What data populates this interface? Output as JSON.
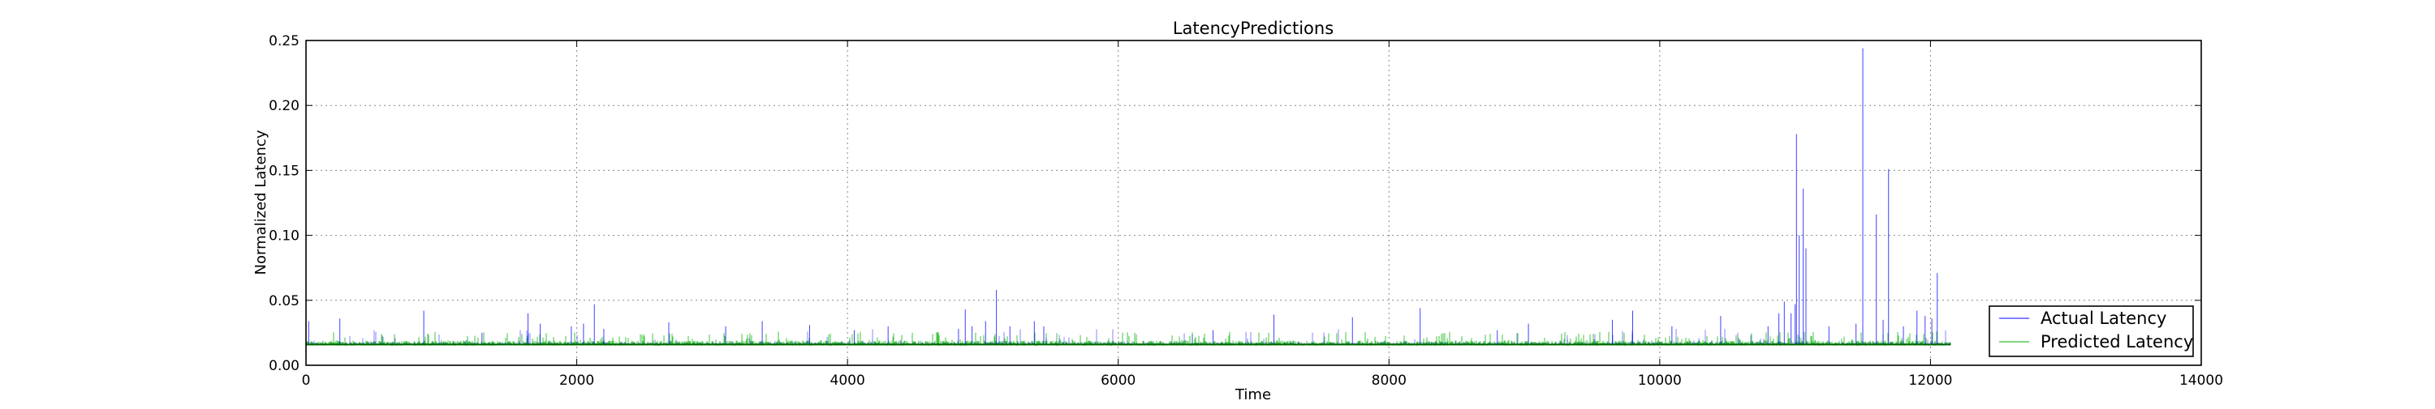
{
  "chart_data": {
    "type": "line",
    "title": "LatencyPredictions",
    "xlabel": "Time",
    "ylabel": "Normalized Latency",
    "xlim": [
      0,
      14000
    ],
    "ylim": [
      0,
      0.25
    ],
    "x_ticks": [
      0,
      2000,
      4000,
      6000,
      8000,
      10000,
      12000,
      14000
    ],
    "y_ticks": [
      "0.00",
      "0.05",
      "0.10",
      "0.15",
      "0.20",
      "0.25"
    ],
    "grid": true,
    "legend_position": "lower-right",
    "n_points": 12150,
    "baseline": 0.016,
    "series": [
      {
        "name": "Actual Latency",
        "color": "#0000ff",
        "baseline": 0.016,
        "spikes": [
          [
            20,
            0.034
          ],
          [
            250,
            0.036
          ],
          [
            870,
            0.042
          ],
          [
            1300,
            0.025
          ],
          [
            1640,
            0.04
          ],
          [
            1730,
            0.032
          ],
          [
            1960,
            0.03
          ],
          [
            2050,
            0.032
          ],
          [
            2130,
            0.047
          ],
          [
            2200,
            0.028
          ],
          [
            2680,
            0.033
          ],
          [
            3100,
            0.03
          ],
          [
            3370,
            0.034
          ],
          [
            3720,
            0.031
          ],
          [
            4050,
            0.027
          ],
          [
            4300,
            0.03
          ],
          [
            4820,
            0.028
          ],
          [
            4870,
            0.043
          ],
          [
            4920,
            0.03
          ],
          [
            5020,
            0.034
          ],
          [
            5100,
            0.058
          ],
          [
            5200,
            0.03
          ],
          [
            5380,
            0.034
          ],
          [
            5450,
            0.03
          ],
          [
            6700,
            0.027
          ],
          [
            7150,
            0.039
          ],
          [
            7730,
            0.037
          ],
          [
            8230,
            0.044
          ],
          [
            8800,
            0.027
          ],
          [
            9030,
            0.032
          ],
          [
            9650,
            0.035
          ],
          [
            9800,
            0.042
          ],
          [
            10090,
            0.03
          ],
          [
            10450,
            0.038
          ],
          [
            10800,
            0.03
          ],
          [
            10880,
            0.04
          ],
          [
            10920,
            0.049
          ],
          [
            10970,
            0.04
          ],
          [
            11000,
            0.047
          ],
          [
            11010,
            0.178
          ],
          [
            11030,
            0.1
          ],
          [
            11060,
            0.136
          ],
          [
            11080,
            0.09
          ],
          [
            11250,
            0.03
          ],
          [
            11450,
            0.032
          ],
          [
            11500,
            0.244
          ],
          [
            11600,
            0.116
          ],
          [
            11650,
            0.035
          ],
          [
            11690,
            0.151
          ],
          [
            11800,
            0.03
          ],
          [
            11900,
            0.042
          ],
          [
            11960,
            0.038
          ],
          [
            12010,
            0.036
          ],
          [
            12050,
            0.071
          ]
        ]
      },
      {
        "name": "Predicted Latency",
        "color": "#00b000",
        "baseline": 0.016,
        "jitter_max": 0.026
      }
    ]
  }
}
